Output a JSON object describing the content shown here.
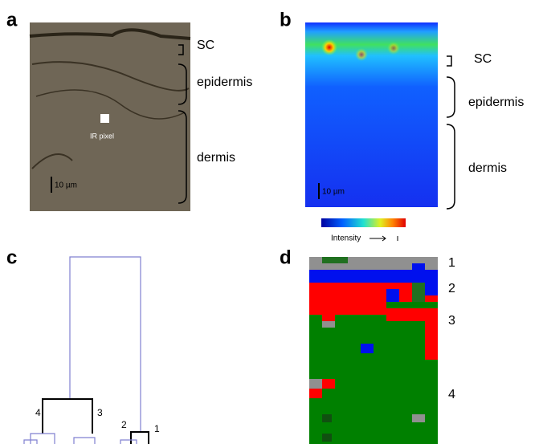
{
  "panels": [
    {
      "label": "a",
      "annotations": [
        "SC",
        "epidermis",
        "dermis"
      ],
      "pixel_label": "IR pixel",
      "scale_bar": "10 µm"
    },
    {
      "label": "b",
      "annotations": [
        "SC",
        "epidermis",
        "dermis"
      ],
      "scale_bar": "10 µm",
      "colorbar_label": "Intensity"
    },
    {
      "label": "c",
      "cluster_labels": [
        "4",
        "3",
        "2",
        "1"
      ]
    },
    {
      "label": "d",
      "cluster_labels": [
        "1",
        "2",
        "3",
        "4"
      ]
    }
  ]
}
